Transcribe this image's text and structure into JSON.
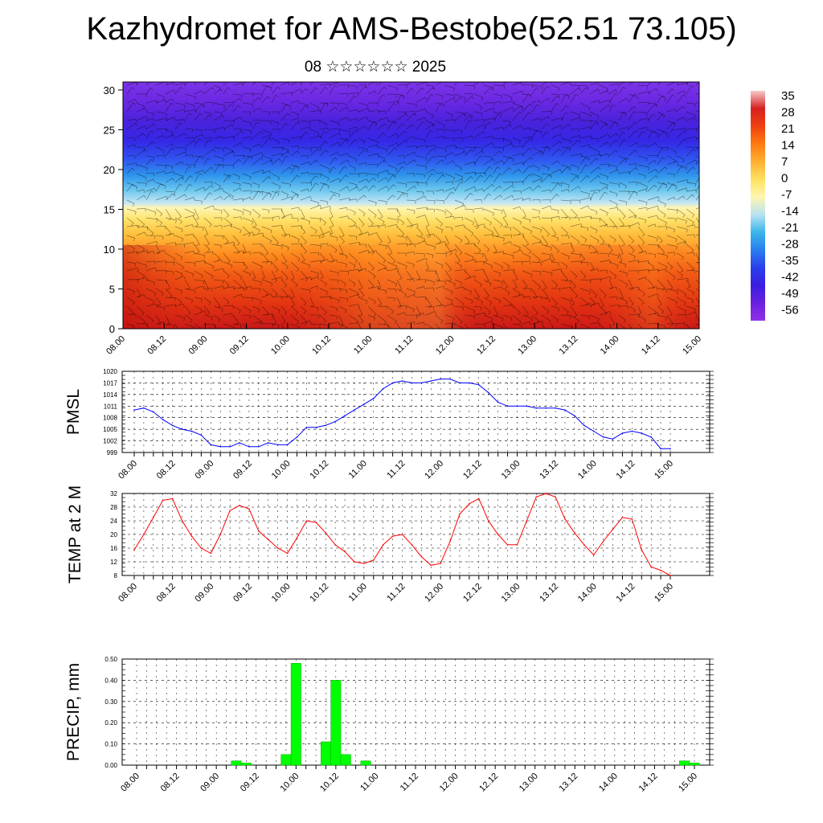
{
  "title": "Kazhydromet for AMS-Bestobe(52.51 73.105)",
  "subtitle": "08 ☆☆☆☆☆☆ 2025",
  "time_labels": [
    "08.00",
    "08.12",
    "09.00",
    "09.12",
    "10.00",
    "10.12",
    "11.00",
    "11.12",
    "12.00",
    "12.12",
    "13.00",
    "13.12",
    "14.00",
    "14.12",
    "15.00"
  ],
  "colors": {
    "pmsl_line": "#0000ff",
    "temp_line": "#ff0000",
    "precip_bar": "#00ff00",
    "precip_edge": "#00aa00"
  },
  "colorbar": {
    "labels": [
      "35",
      "28",
      "21",
      "14",
      "7",
      "0",
      "-7",
      "-14",
      "-21",
      "-28",
      "-35",
      "-42",
      "-49",
      "-56"
    ],
    "stops": [
      "#f6c9c9",
      "#d62020",
      "#f04010",
      "#ff7a10",
      "#ffb030",
      "#ffe060",
      "#fff6b0",
      "#b9e3f2",
      "#3cb6ea",
      "#2a7ef0",
      "#2a40ec",
      "#3a1ee0",
      "#6a20e0",
      "#9032e6"
    ]
  },
  "chart_data": [
    {
      "type": "heatmap",
      "title": "",
      "xlabel": "",
      "ylabel": "",
      "x": [
        "08.00",
        "08.12",
        "09.00",
        "09.12",
        "10.00",
        "10.12",
        "11.00",
        "11.12",
        "12.00",
        "12.12",
        "13.00",
        "13.12",
        "14.00",
        "14.12",
        "15.00"
      ],
      "yticks": [
        0,
        5,
        10,
        15,
        20,
        25,
        30
      ],
      "ylim": [
        0,
        31
      ],
      "colorbar_range": [
        -56,
        35
      ],
      "overlay": "wind barbs"
    },
    {
      "type": "line",
      "ylabel": "PMSL",
      "ylim": [
        999,
        1020
      ],
      "yticks": [
        999,
        1002,
        1005,
        1008,
        1011,
        1014,
        1017,
        1020
      ],
      "grid": true,
      "x": [
        "08.00",
        "08.03",
        "08.06",
        "08.09",
        "08.12",
        "08.15",
        "08.18",
        "08.21",
        "09.00",
        "09.03",
        "09.06",
        "09.09",
        "09.12",
        "09.15",
        "09.18",
        "09.21",
        "10.00",
        "10.03",
        "10.06",
        "10.09",
        "10.12",
        "10.15",
        "10.18",
        "10.21",
        "11.00",
        "11.03",
        "11.06",
        "11.09",
        "11.12",
        "11.15",
        "11.18",
        "11.21",
        "12.00",
        "12.03",
        "12.06",
        "12.09",
        "12.12",
        "12.15",
        "12.18",
        "12.21",
        "13.00",
        "13.03",
        "13.06",
        "13.09",
        "13.12",
        "13.15",
        "13.18",
        "13.21",
        "14.00",
        "14.03",
        "14.06",
        "14.09",
        "14.12",
        "14.15",
        "14.18",
        "14.21",
        "15.00"
      ],
      "values": [
        1010,
        1010.5,
        1009.5,
        1007.5,
        1006,
        1005,
        1004.5,
        1003.5,
        1001,
        1000.5,
        1000.5,
        1001.5,
        1000.5,
        1000.5,
        1001.5,
        1001,
        1001,
        1003,
        1005.5,
        1005.5,
        1006,
        1007,
        1008.5,
        1010,
        1011.5,
        1013,
        1015.5,
        1017,
        1017.5,
        1017,
        1017,
        1017.5,
        1018,
        1018,
        1017,
        1017,
        1016.5,
        1014.5,
        1012,
        1011,
        1011,
        1011,
        1010.5,
        1010.5,
        1010.5,
        1010,
        1008.5,
        1006,
        1004.5,
        1003,
        1002.5,
        1004,
        1004.5,
        1004,
        1003,
        1000,
        1000
      ]
    },
    {
      "type": "line",
      "ylabel": "TEMP at 2 M",
      "ylim": [
        8,
        32
      ],
      "yticks": [
        8,
        12,
        16,
        20,
        24,
        28,
        32
      ],
      "grid": true,
      "x": [
        "08.00",
        "08.03",
        "08.06",
        "08.09",
        "08.12",
        "08.15",
        "08.18",
        "08.21",
        "09.00",
        "09.03",
        "09.06",
        "09.09",
        "09.12",
        "09.15",
        "09.18",
        "09.21",
        "10.00",
        "10.03",
        "10.06",
        "10.09",
        "10.12",
        "10.15",
        "10.18",
        "10.21",
        "11.00",
        "11.03",
        "11.06",
        "11.09",
        "11.12",
        "11.15",
        "11.18",
        "11.21",
        "12.00",
        "12.03",
        "12.06",
        "12.09",
        "12.12",
        "12.15",
        "12.18",
        "12.21",
        "13.00",
        "13.03",
        "13.06",
        "13.09",
        "13.12",
        "13.15",
        "13.18",
        "13.21",
        "14.00",
        "14.03",
        "14.06",
        "14.09",
        "14.12",
        "14.15",
        "14.18",
        "14.21",
        "15.00"
      ],
      "values": [
        15.5,
        20,
        25,
        30,
        30.5,
        24,
        19.5,
        16,
        14.5,
        20,
        27,
        28.5,
        27.5,
        21,
        18.5,
        16,
        14.5,
        19,
        24,
        23.5,
        20.5,
        17,
        15,
        12,
        11.5,
        12.5,
        17,
        19.5,
        20,
        17,
        13.5,
        11,
        11.5,
        18,
        26,
        29,
        30.5,
        24,
        20,
        17,
        17,
        24,
        31,
        32,
        31,
        24.5,
        20.5,
        17,
        14,
        18,
        21.5,
        25,
        24.5,
        15.5,
        10.5,
        9.5,
        8
      ]
    },
    {
      "type": "bar",
      "ylabel": "PRECIP, mm",
      "ylim": [
        0,
        0.5
      ],
      "yticks": [
        "0.00",
        "0.10",
        "0.20",
        "0.30",
        "0.40",
        "0.50"
      ],
      "grid": true,
      "x": [
        "08.00",
        "08.03",
        "08.06",
        "08.09",
        "08.12",
        "08.15",
        "08.18",
        "08.21",
        "09.00",
        "09.03",
        "09.06",
        "09.09",
        "09.12",
        "09.15",
        "09.18",
        "09.21",
        "10.00",
        "10.03",
        "10.06",
        "10.09",
        "10.12",
        "10.15",
        "10.18",
        "10.21",
        "11.00",
        "11.03",
        "11.06",
        "11.09",
        "11.12",
        "11.15",
        "11.18",
        "11.21",
        "12.00",
        "12.03",
        "12.06",
        "12.09",
        "12.12",
        "12.15",
        "12.18",
        "12.21",
        "13.00",
        "13.03",
        "13.06",
        "13.09",
        "13.12",
        "13.15",
        "13.18",
        "13.21",
        "14.00",
        "14.03",
        "14.06",
        "14.09",
        "14.12",
        "14.15",
        "14.18",
        "14.21",
        "15.00"
      ],
      "values": [
        0,
        0,
        0,
        0,
        0,
        0,
        0,
        0,
        0,
        0,
        0.02,
        0.01,
        0,
        0,
        0,
        0.05,
        0.48,
        0,
        0,
        0.11,
        0.4,
        0.05,
        0,
        0.02,
        0,
        0,
        0,
        0,
        0,
        0,
        0,
        0,
        0,
        0,
        0,
        0,
        0,
        0,
        0,
        0,
        0,
        0,
        0,
        0,
        0,
        0,
        0,
        0,
        0,
        0,
        0,
        0,
        0,
        0,
        0,
        0.02,
        0.01
      ]
    }
  ]
}
